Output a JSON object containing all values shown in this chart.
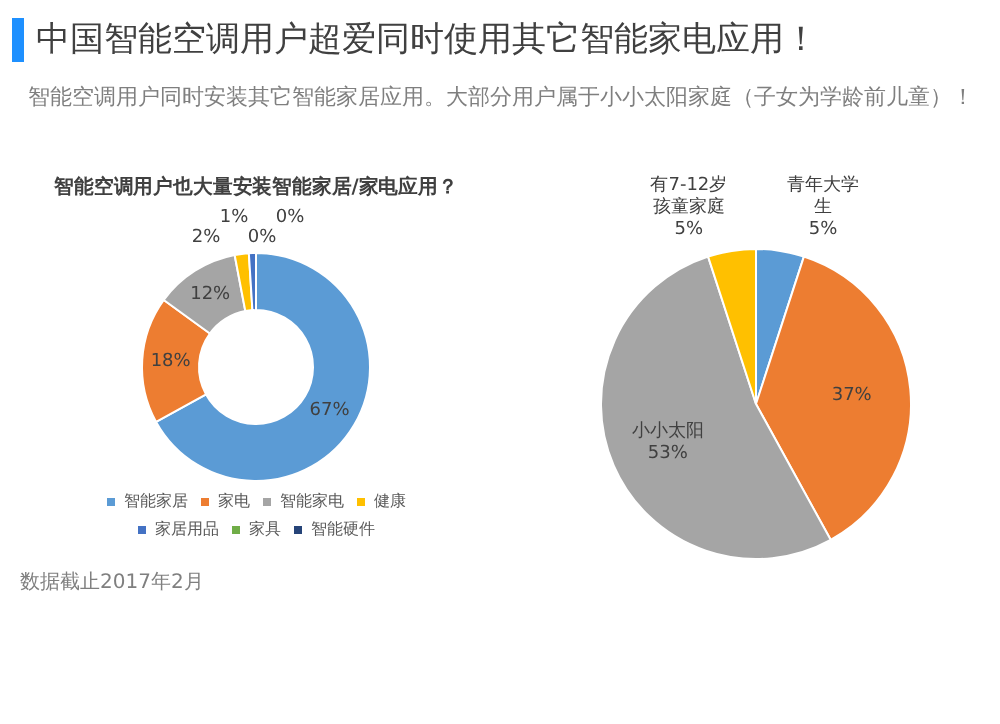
{
  "chart_data": [
    {
      "type": "other",
      "title": "中国智能空调用户超爱同时使用其它智能家电应用！",
      "subtitle": "智能空调用户同时安装其它智能家居应用。大部分用户属于小小太阳家庭（子女为学龄前儿童）！",
      "annotations": [
        "数据截止2017年2月"
      ]
    },
    {
      "type": "donut",
      "title": "智能空调用户也大量安装智能家居/家电应用？",
      "categories": [
        "智能家居",
        "家电",
        "智能家电",
        "健康",
        "家居用品",
        "家具",
        "智能硬件"
      ],
      "values": [
        67,
        18,
        12,
        2,
        1,
        0,
        0
      ],
      "value_labels": [
        "67%",
        "18%",
        "12%",
        "2%",
        "1%",
        "0%",
        "0%"
      ],
      "colors": [
        "#5b9bd5",
        "#ed7d31",
        "#a5a5a5",
        "#ffc000",
        "#4472c4",
        "#70ad47",
        "#264478"
      ],
      "legend": "bottom"
    },
    {
      "type": "pie",
      "categories": [
        "青年大学生",
        null,
        "小小太阳",
        "有7-12岁孩童家庭"
      ],
      "values": [
        5,
        37,
        53,
        5
      ],
      "value_labels": [
        "5%",
        "37%",
        "53%",
        "5%"
      ],
      "colors": [
        "#5b9bd5",
        "#ed7d31",
        "#a5a5a5",
        "#ffc000"
      ]
    }
  ]
}
